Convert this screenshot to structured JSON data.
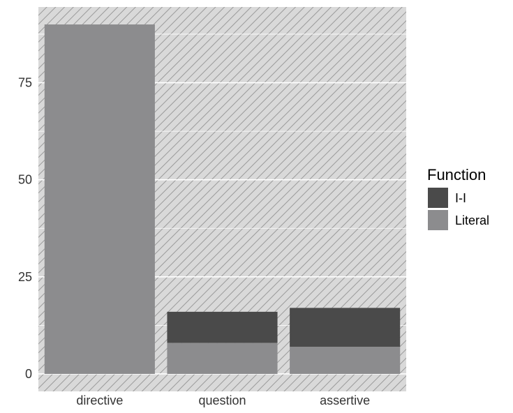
{
  "chart_data": {
    "type": "bar",
    "stacked": true,
    "categories": [
      "directive",
      "question",
      "assertive"
    ],
    "series": [
      {
        "name": "I-I",
        "values": [
          0,
          8,
          10
        ],
        "color": "#4a4a4a"
      },
      {
        "name": "Literal",
        "values": [
          90,
          8,
          7
        ],
        "color": "#8c8c8e"
      }
    ],
    "title": "",
    "xlabel": "",
    "ylabel": "",
    "ylim": [
      -4.5,
      94.5
    ],
    "yticks": [
      0,
      25,
      50,
      75
    ],
    "legend": {
      "title": "Function",
      "position": "right"
    },
    "grid": true,
    "background": "hatched gray"
  }
}
